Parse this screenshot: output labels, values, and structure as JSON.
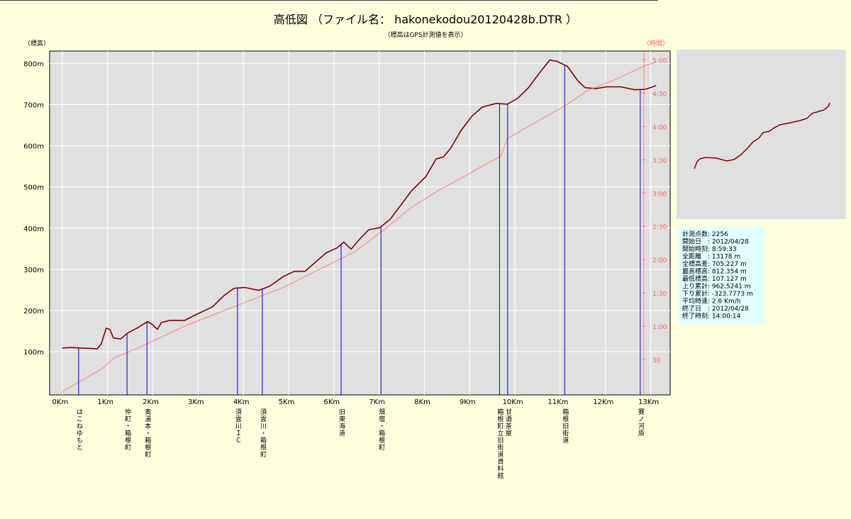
{
  "chart_data": {
    "type": "line",
    "title": "高低図 （ファイル名： hakonekodou20120428b.DTR ）",
    "subtitle": "（標高はGPS計測値を表示）",
    "y_label": "（標高）",
    "y2_label": "（時間）",
    "grid": true,
    "xlim": [
      -0.28,
      13.43
    ],
    "xticks": [
      {
        "value": 0,
        "label": "0Km"
      },
      {
        "value": 1,
        "label": "1Km"
      },
      {
        "value": 2,
        "label": "2Km"
      },
      {
        "value": 3,
        "label": "3Km"
      },
      {
        "value": 4,
        "label": "4Km"
      },
      {
        "value": 5,
        "label": "5Km"
      },
      {
        "value": 6,
        "label": "6Km"
      },
      {
        "value": 7,
        "label": "7Km"
      },
      {
        "value": 8,
        "label": "8Km"
      },
      {
        "value": 9,
        "label": "9Km"
      },
      {
        "value": 10,
        "label": "10Km"
      },
      {
        "value": 11,
        "label": "11Km"
      },
      {
        "value": 12,
        "label": "12Km"
      },
      {
        "value": 13,
        "label": "13Km"
      }
    ],
    "ylim": [
      -5,
      830
    ],
    "yticks": [
      {
        "value": 100,
        "label": "100m"
      },
      {
        "value": 200,
        "label": "200m"
      },
      {
        "value": 300,
        "label": "300m"
      },
      {
        "value": 400,
        "label": "400m"
      },
      {
        "value": 500,
        "label": "500m"
      },
      {
        "value": 600,
        "label": "600m"
      },
      {
        "value": 700,
        "label": "700m"
      },
      {
        "value": 800,
        "label": "800m"
      }
    ],
    "y2lim": [
      -2,
      308
    ],
    "y2ticks": [
      30,
      {
        "value": 60,
        "label": "1:00"
      },
      {
        "value": 90,
        "label": "1:30"
      },
      {
        "value": 120,
        "label": "2:00"
      },
      {
        "value": 150,
        "label": "2:30"
      },
      {
        "value": 180,
        "label": "3:00"
      },
      {
        "value": 210,
        "label": "3:30"
      },
      {
        "value": 240,
        "label": "4:00"
      },
      {
        "value": 270,
        "label": "4:30"
      },
      {
        "value": 300,
        "label": "5:00"
      }
    ],
    "series": [
      {
        "color": "#800000",
        "x": [
          0,
          0.19,
          0.4,
          0.77,
          0.86,
          0.97,
          1.05,
          1.13,
          1.29,
          1.44,
          1.68,
          1.88,
          1.99,
          2.1,
          2.19,
          2.38,
          2.7,
          3.01,
          3.32,
          3.56,
          3.79,
          4.03,
          4.34,
          4.58,
          4.89,
          5.13,
          5.36,
          5.6,
          5.83,
          6.07,
          6.22,
          6.38,
          6.61,
          6.77,
          7.01,
          7.24,
          7.48,
          7.71,
          8.03,
          8.26,
          8.42,
          8.58,
          8.81,
          9.05,
          9.28,
          9.59,
          9.83,
          10.06,
          10.3,
          10.53,
          10.77,
          10.93,
          11.16,
          11.39,
          11.55,
          11.79,
          12.02,
          12.34,
          12.65,
          12.88,
          13.12
        ],
        "values": [
          109,
          110,
          109,
          107,
          119,
          157,
          154,
          133,
          131,
          145,
          159,
          173,
          166,
          154,
          171,
          176,
          176,
          193,
          209,
          235,
          254,
          256,
          249,
          259,
          283,
          295,
          295,
          318,
          340,
          352,
          366,
          349,
          378,
          396,
          401,
          421,
          456,
          490,
          525,
          568,
          573,
          594,
          637,
          672,
          694,
          703,
          701,
          715,
          741,
          775,
          808,
          805,
          793,
          758,
          741,
          739,
          743,
          743,
          736,
          737,
          746
        ]
      },
      {
        "color": "#ff7f7f",
        "axis": "y2",
        "x": [
          0,
          0.34,
          0.89,
          1.13,
          1.76,
          2.7,
          3.32,
          3.95,
          4.89,
          5.67,
          6.46,
          7.08,
          7.71,
          8.34,
          8.97,
          9.44,
          9.69,
          9.83,
          10.38,
          11.08,
          11.63,
          12.26,
          12.88,
          13.12
        ],
        "values": [
          1,
          9,
          22,
          31,
          42,
          60,
          70,
          80,
          95,
          111,
          127,
          146,
          167,
          183,
          197,
          208,
          213,
          229,
          242,
          258,
          273,
          283,
          295,
          298
        ]
      }
    ],
    "markers": {
      "color": "#0000c0",
      "x": [
        0.36,
        1.43,
        1.87,
        3.87,
        4.42,
        6.16,
        7.04,
        9.66,
        9.84,
        11.1,
        12.77
      ],
      "labels": [
        "はこねゆもと",
        "仲町・箱根町",
        "奥湯本・箱根町",
        "須雲川ＩＣ",
        "須雲川・箱根町",
        "旧東海道",
        "畑宿・箱根町",
        "箱根町立旧街道資料館",
        "甘酒茶屋",
        "箱根旧街道",
        "賽ノ河原"
      ]
    },
    "stats": [
      "計測点数: 2256",
      "開始日　: 2012/04/28",
      "開始時刻: 8:59:33",
      "全距離　: 13178 m",
      "全標高差: 705.227 m",
      "最高標高: 812.354 m",
      "最低標高: 107.127 m",
      "上り累計: 962.5241 m",
      "下り累計: -323.7773 m",
      "平均時速: 2.6 Km/h",
      "終了日　: 2012/04/28",
      "終了時刻: 14:00:14"
    ]
  }
}
